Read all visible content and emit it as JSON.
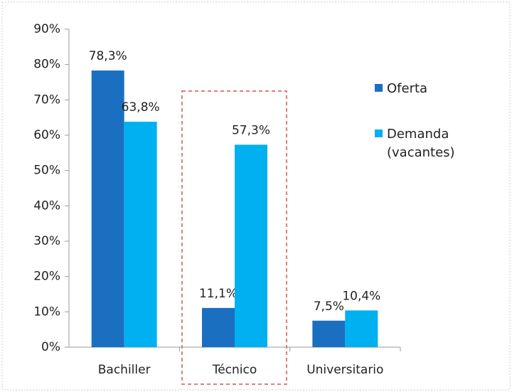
{
  "chart_data": {
    "type": "bar",
    "categories": [
      "Bachiller",
      "Técnico",
      "Universitario"
    ],
    "series": [
      {
        "name": "Oferta",
        "color": "#1a6fc0",
        "values": [
          78.3,
          11.1,
          7.5
        ],
        "value_labels": [
          "78,3%",
          "11,1%",
          "7,5%"
        ]
      },
      {
        "name": "Demanda (vacantes)",
        "color": "#00b0f0",
        "values": [
          63.8,
          57.3,
          10.4
        ],
        "value_labels": [
          "63,8%",
          "57,3%",
          "10,4%"
        ]
      }
    ],
    "ylim": [
      0,
      90
    ],
    "yticks": [
      {
        "value": 0,
        "label": "0%"
      },
      {
        "value": 10,
        "label": "10%"
      },
      {
        "value": 20,
        "label": "20%"
      },
      {
        "value": 30,
        "label": "30%"
      },
      {
        "value": 40,
        "label": "40%"
      },
      {
        "value": 50,
        "label": "50%"
      },
      {
        "value": 60,
        "label": "60%"
      },
      {
        "value": 70,
        "label": "70%"
      },
      {
        "value": 80,
        "label": "80%"
      },
      {
        "value": 90,
        "label": "90%"
      }
    ],
    "grid": false,
    "legend": "right"
  }
}
